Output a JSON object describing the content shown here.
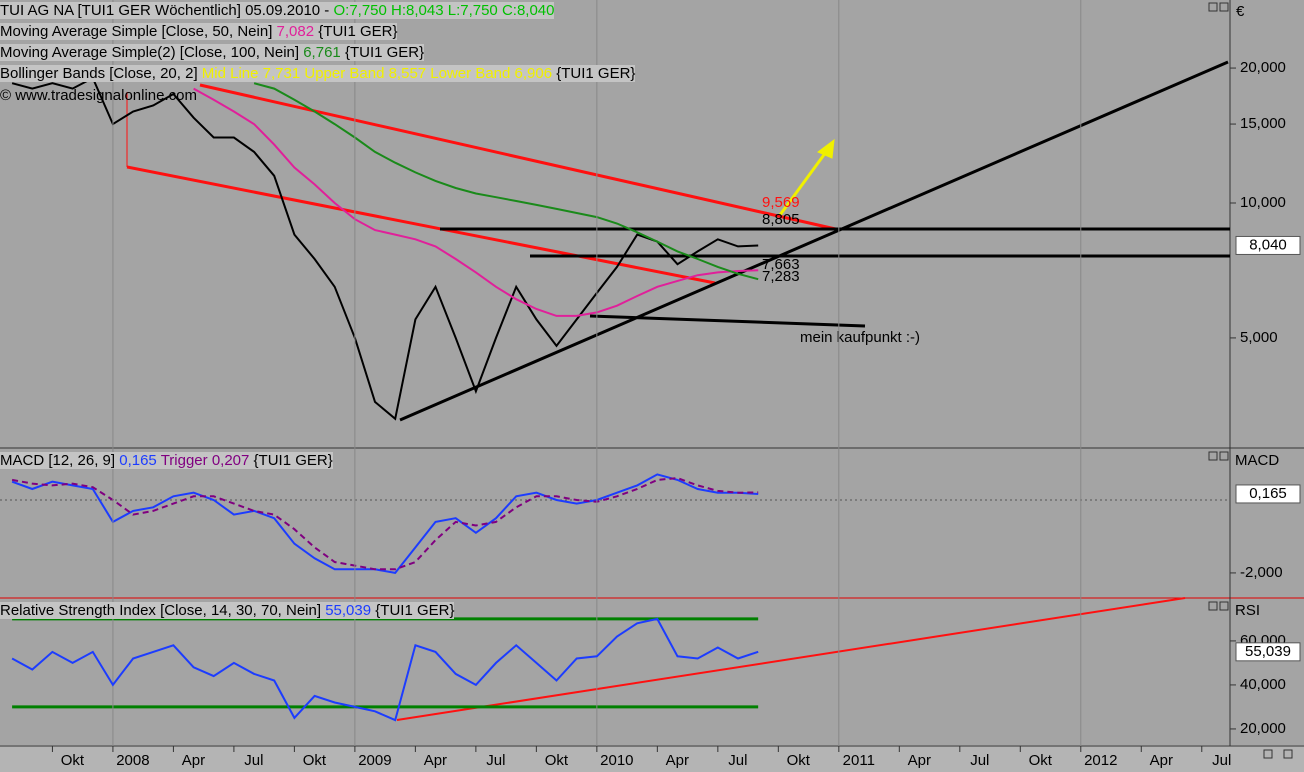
{
  "chart_data": [
    {
      "type": "line",
      "title": "TUI AG NA [TUI1 GER  Wöchentlich] 05.09.2010 -",
      "quote": "O:7,750 H:8,043 L:7,750 C:8,040",
      "watermark": "© www.tradesignalonline.com",
      "axis_title": "€",
      "log": true,
      "xlim": [
        -5.6,
        55.4
      ],
      "ylim": [
        2.855,
        28.37
      ],
      "yticks": [
        {
          "value": 5,
          "label": "5,000"
        },
        {
          "value": 10,
          "label": "10,000"
        },
        {
          "value": 15,
          "label": "15,000"
        },
        {
          "value": 20,
          "label": "20,000"
        }
      ],
      "x": [
        -5,
        -4,
        -3,
        -2,
        -1,
        0,
        1,
        2,
        3,
        4,
        5,
        6,
        7,
        8,
        9,
        10,
        11,
        12,
        13,
        14,
        15,
        16,
        17,
        18,
        19,
        20,
        21,
        22,
        23,
        24,
        25,
        26,
        27,
        28,
        29,
        30,
        31,
        32
      ],
      "series": [
        {
          "color": "#000000",
          "last_label": "8,040",
          "values": [
            18.5,
            18,
            18.5,
            18,
            19,
            15,
            16,
            16.5,
            17.5,
            15.5,
            14,
            14,
            13,
            11.5,
            8.5,
            7.5,
            6.5,
            5,
            3.6,
            3.3,
            5.5,
            6.5,
            5,
            3.8,
            5,
            6.5,
            5.5,
            4.8,
            5.5,
            6.3,
            7.2,
            8.5,
            8.2,
            7.3,
            7.8,
            8.3,
            8,
            8.04
          ]
        },
        {
          "name": "Moving Average Simple [Close, 50, Nein]",
          "color": "#e0209a",
          "last_label": "7,082",
          "suffix": "{TUI1 GER}",
          "values": [
            null,
            null,
            null,
            null,
            null,
            null,
            null,
            null,
            null,
            18,
            17,
            16,
            15,
            13.5,
            12,
            11,
            10,
            9.2,
            8.7,
            8.5,
            8.3,
            8,
            7.5,
            7,
            6.5,
            6.1,
            5.8,
            5.6,
            5.6,
            5.7,
            5.9,
            6.2,
            6.5,
            6.7,
            6.9,
            7.0,
            7.05,
            7.082
          ]
        },
        {
          "name": "Moving Average Simple(2) [Close, 100, Nein]",
          "color": "#1a8a1a",
          "last_label": "6,761",
          "suffix": "{TUI1 GER}",
          "values": [
            null,
            null,
            null,
            null,
            null,
            null,
            null,
            null,
            null,
            null,
            null,
            null,
            18.5,
            18,
            17,
            16,
            15,
            14,
            13,
            12.3,
            11.7,
            11.2,
            10.8,
            10.5,
            10.3,
            10.1,
            9.9,
            9.7,
            9.5,
            9.3,
            9.0,
            8.6,
            8.2,
            7.8,
            7.5,
            7.2,
            6.95,
            6.761
          ]
        }
      ],
      "bollinger": {
        "name": "Bollinger Bands [Close, 20, 2]",
        "label": "Mid Line 7,731 Upper Band 8,557 Lower Band 6,906",
        "suffix": "{TUI1 GER}"
      },
      "annotations": [
        "9,569",
        "8,805",
        "7,663",
        "7,283",
        "mein kaufpunkt :-)"
      ]
    },
    {
      "type": "line",
      "axis_title": "MACD",
      "zero_line": true,
      "suffix": "{TUI1 GER}",
      "xlim": [
        -5.6,
        55.4
      ],
      "ylim": [
        -2.66,
        1.37
      ],
      "yticks": [
        {
          "value": -2,
          "label": "-2,000"
        }
      ],
      "x": [
        -5,
        -4,
        -3,
        -2,
        -1,
        0,
        1,
        2,
        3,
        4,
        5,
        6,
        7,
        8,
        9,
        10,
        11,
        12,
        13,
        14,
        15,
        16,
        17,
        18,
        19,
        20,
        21,
        22,
        23,
        24,
        25,
        26,
        27,
        28,
        29,
        30,
        31,
        32
      ],
      "series": [
        {
          "name": "MACD [12, 26, 9]",
          "color": "#1c3cff",
          "last_label": "0,165",
          "values": [
            0.5,
            0.3,
            0.5,
            0.4,
            0.3,
            -0.6,
            -0.3,
            -0.2,
            0.1,
            0.2,
            0.0,
            -0.4,
            -0.3,
            -0.5,
            -1.2,
            -1.6,
            -1.9,
            -1.9,
            -1.9,
            -2.0,
            -1.3,
            -0.6,
            -0.5,
            -0.9,
            -0.5,
            0.1,
            0.2,
            0.0,
            -0.1,
            0.0,
            0.2,
            0.4,
            0.7,
            0.55,
            0.3,
            0.2,
            0.2,
            0.165
          ]
        },
        {
          "name": "Trigger",
          "color": "#800080",
          "dashed": true,
          "last_label": "0,207",
          "values": [
            0.55,
            0.45,
            0.4,
            0.45,
            0.35,
            0.0,
            -0.4,
            -0.3,
            -0.1,
            0.1,
            0.1,
            -0.1,
            -0.3,
            -0.4,
            -0.8,
            -1.3,
            -1.7,
            -1.8,
            -1.9,
            -1.9,
            -1.7,
            -1.1,
            -0.6,
            -0.7,
            -0.6,
            -0.2,
            0.1,
            0.1,
            0.0,
            -0.05,
            0.1,
            0.3,
            0.55,
            0.6,
            0.4,
            0.25,
            0.2,
            0.207
          ]
        }
      ]
    },
    {
      "type": "line",
      "axis_title": "RSI",
      "levels": [
        30,
        70
      ],
      "level_color": "#008000",
      "xlim": [
        -5.6,
        55.4
      ],
      "ylim": [
        12.7,
        78.6
      ],
      "yticks": [
        {
          "value": 20,
          "label": "20,000"
        },
        {
          "value": 40,
          "label": "40,000"
        },
        {
          "value": 60,
          "label": "60,000"
        }
      ],
      "xticks": [
        {
          "value": -3,
          "label": "Okt"
        },
        {
          "value": 0,
          "label": "2008"
        },
        {
          "value": 3,
          "label": "Apr"
        },
        {
          "value": 6,
          "label": "Jul"
        },
        {
          "value": 9,
          "label": "Okt"
        },
        {
          "value": 12,
          "label": "2009"
        },
        {
          "value": 15,
          "label": "Apr"
        },
        {
          "value": 18,
          "label": "Jul"
        },
        {
          "value": 21,
          "label": "Okt"
        },
        {
          "value": 24,
          "label": "2010"
        },
        {
          "value": 27,
          "label": "Apr"
        },
        {
          "value": 30,
          "label": "Jul"
        },
        {
          "value": 33,
          "label": "Okt"
        },
        {
          "value": 36,
          "label": "2011"
        },
        {
          "value": 39,
          "label": "Apr"
        },
        {
          "value": 42,
          "label": "Jul"
        },
        {
          "value": 45,
          "label": "Okt"
        },
        {
          "value": 48,
          "label": "2012"
        },
        {
          "value": 51,
          "label": "Apr"
        },
        {
          "value": 54,
          "label": "Jul"
        }
      ],
      "x": [
        -5,
        -4,
        -3,
        -2,
        -1,
        0,
        1,
        2,
        3,
        4,
        5,
        6,
        7,
        8,
        9,
        10,
        11,
        12,
        13,
        14,
        15,
        16,
        17,
        18,
        19,
        20,
        21,
        22,
        23,
        24,
        25,
        26,
        27,
        28,
        29,
        30,
        31,
        32
      ],
      "series": [
        {
          "name": "Relative Strength Index [Close, 14, 30, 70, Nein]",
          "color": "#1c3cff",
          "last_label": "55,039",
          "suffix": "{TUI1 GER}",
          "values": [
            52,
            47,
            55,
            50,
            55,
            40,
            52,
            55,
            58,
            48,
            44,
            50,
            45,
            42,
            25,
            35,
            32,
            30,
            28,
            24,
            58,
            55,
            45,
            40,
            50,
            58,
            50,
            42,
            52,
            53,
            62,
            68,
            70,
            53,
            52,
            57,
            52,
            55.039
          ]
        }
      ]
    }
  ]
}
